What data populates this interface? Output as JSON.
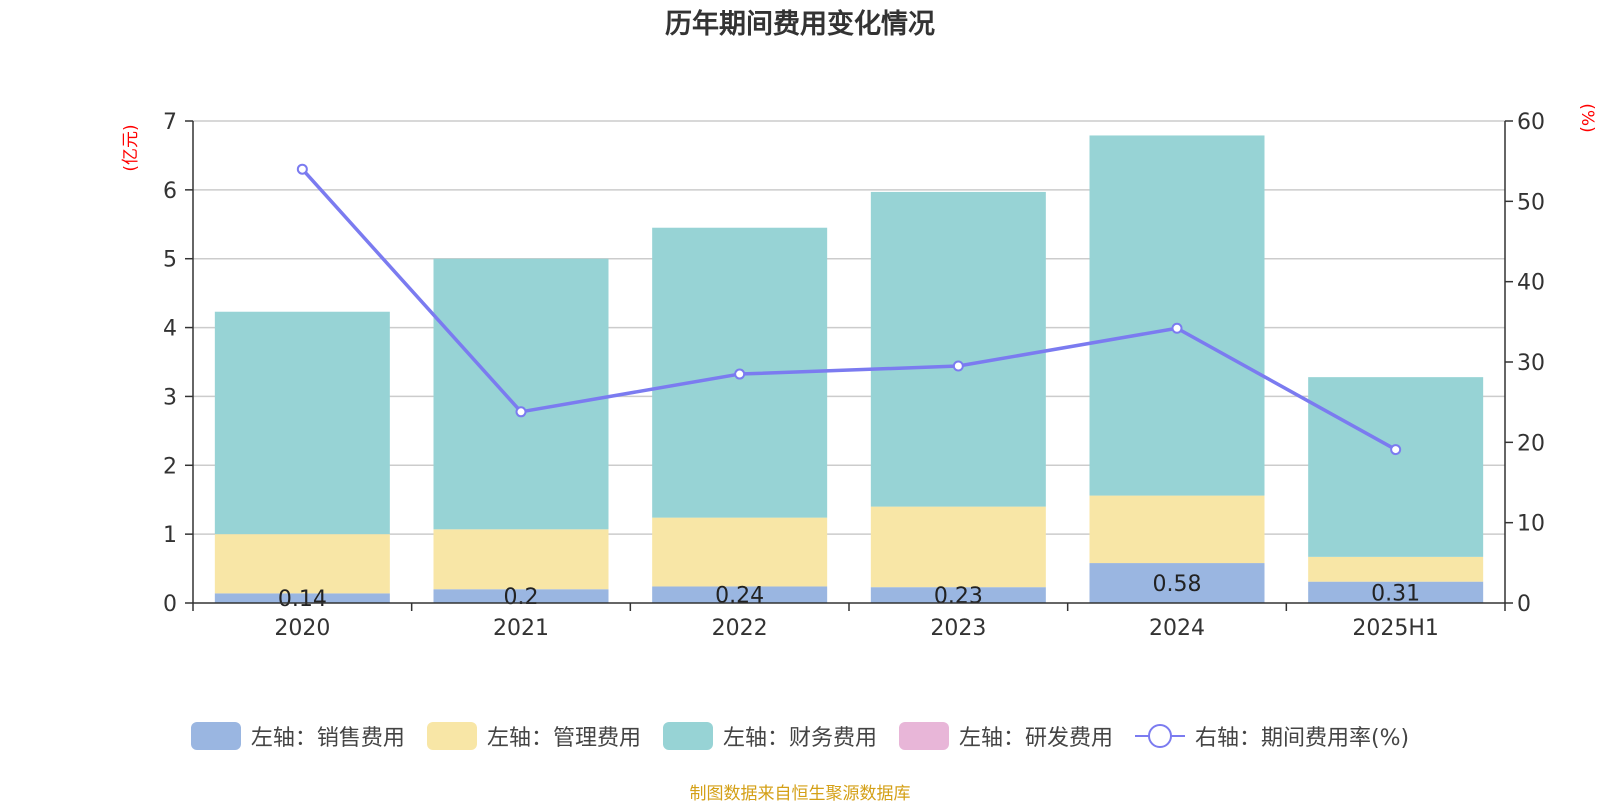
{
  "title": "历年期间费用变化情况",
  "source": "制图数据来自恒生聚源数据库",
  "colors": {
    "sales": "#9ab6e1",
    "admin": "#f8e6a6",
    "finance": "#97d3d5",
    "rnd": "#e8b6d8",
    "rate": "#7b7bf0",
    "axis_unit": "#ff0000",
    "source": "#d4a017"
  },
  "legend": [
    {
      "label": "左轴：销售费用",
      "color": "#9ab6e1",
      "kind": "bar"
    },
    {
      "label": "左轴：管理费用",
      "color": "#f8e6a6",
      "kind": "bar"
    },
    {
      "label": "左轴：财务费用",
      "color": "#97d3d5",
      "kind": "bar"
    },
    {
      "label": "左轴：研发费用",
      "color": "#e8b6d8",
      "kind": "bar"
    },
    {
      "label": "右轴：期间费用率(%)",
      "color": "#7b7bf0",
      "kind": "line"
    }
  ],
  "chart_data": {
    "type": "bar",
    "title": "历年期间费用变化情况",
    "categories": [
      "2020",
      "2021",
      "2022",
      "2023",
      "2024",
      "2025H1"
    ],
    "left_axis": {
      "unit": "(亿元)",
      "min": 0,
      "max": 7,
      "ticks": [
        0,
        1,
        2,
        3,
        4,
        5,
        6,
        7
      ]
    },
    "right_axis": {
      "unit": "(%)",
      "min": 0,
      "max": 60,
      "ticks": [
        0,
        10,
        20,
        30,
        40,
        50,
        60
      ]
    },
    "stacked_series": [
      {
        "name": "左轴：销售费用",
        "values": [
          0.14,
          0.2,
          0.24,
          0.23,
          0.58,
          0.31
        ],
        "labels": [
          "0.14",
          "0.2",
          "0.24",
          "0.23",
          "0.58",
          "0.31"
        ]
      },
      {
        "name": "左轴：管理费用",
        "values": [
          0.86,
          0.87,
          1.0,
          1.17,
          0.98,
          0.36
        ]
      },
      {
        "name": "左轴：财务费用",
        "values": [
          3.23,
          3.93,
          4.21,
          4.57,
          5.23,
          2.61
        ]
      },
      {
        "name": "左轴：研发费用",
        "values": [
          0,
          0,
          0,
          0,
          0,
          0
        ]
      }
    ],
    "line_series": {
      "name": "右轴：期间费用率(%)",
      "values": [
        54.0,
        23.8,
        28.5,
        29.5,
        34.2,
        19.1
      ]
    },
    "grid": true,
    "legend_position": "bottom"
  }
}
